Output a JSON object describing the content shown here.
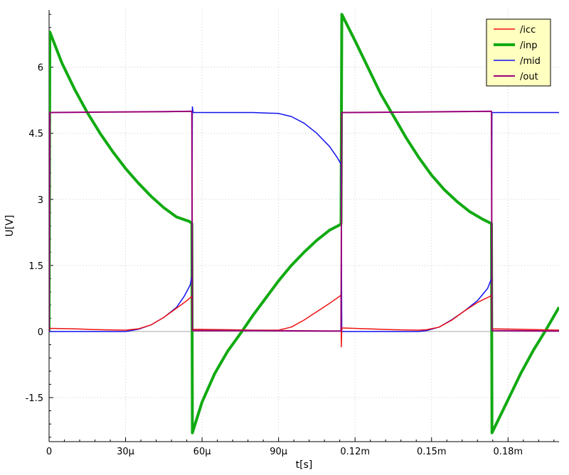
{
  "chart_data": {
    "type": "line",
    "xlabel": "t[s]",
    "ylabel": "U[V]",
    "xlim": [
      0,
      0.0002
    ],
    "ylim": [
      -2.5,
      7.3
    ],
    "grid": true,
    "legend_position": "top-right",
    "x_ticks": [
      {
        "value": 0,
        "label": "0"
      },
      {
        "value": 3e-05,
        "label": "30µ"
      },
      {
        "value": 6e-05,
        "label": "60µ"
      },
      {
        "value": 9e-05,
        "label": "90µ"
      },
      {
        "value": 0.00012,
        "label": "0.12m"
      },
      {
        "value": 0.00015,
        "label": "0.15m"
      },
      {
        "value": 0.00018,
        "label": "0.18m"
      }
    ],
    "y_ticks": [
      {
        "value": -1.5,
        "label": "-1.5"
      },
      {
        "value": 0,
        "label": "0"
      },
      {
        "value": 1.5,
        "label": "1.5"
      },
      {
        "value": 3,
        "label": "3"
      },
      {
        "value": 4.5,
        "label": "4.5"
      },
      {
        "value": 6,
        "label": "6"
      }
    ],
    "series": [
      {
        "name": "/icc",
        "color": "#ee1111",
        "width": 1.5,
        "points": [
          [
            0,
            0.05
          ],
          [
            5e-07,
            0.07
          ],
          [
            1e-05,
            0.06
          ],
          [
            2e-05,
            0.04
          ],
          [
            3e-05,
            0.03
          ],
          [
            3.5e-05,
            0.06
          ],
          [
            4e-05,
            0.15
          ],
          [
            4.5e-05,
            0.32
          ],
          [
            5e-05,
            0.53
          ],
          [
            5.4e-05,
            0.7
          ],
          [
            5.6e-05,
            0.8
          ],
          [
            5.62e-05,
            0.05
          ],
          [
            7e-05,
            0.04
          ],
          [
            8e-05,
            0.03
          ],
          [
            9e-05,
            0.03
          ],
          [
            9.5e-05,
            0.1
          ],
          [
            0.0001,
            0.26
          ],
          [
            0.000105,
            0.45
          ],
          [
            0.00011,
            0.64
          ],
          [
            0.000114,
            0.8
          ],
          [
            0.0001145,
            0.83
          ],
          [
            0.0001146,
            -0.35
          ],
          [
            0.0001148,
            0.08
          ],
          [
            0.000125,
            0.06
          ],
          [
            0.000135,
            0.04
          ],
          [
            0.000145,
            0.03
          ],
          [
            0.000148,
            0.04
          ],
          [
            0.000153,
            0.1
          ],
          [
            0.000158,
            0.26
          ],
          [
            0.000163,
            0.47
          ],
          [
            0.000168,
            0.66
          ],
          [
            0.000173,
            0.8
          ],
          [
            0.0001735,
            0.83
          ],
          [
            0.0001737,
            0.06
          ],
          [
            0.000185,
            0.05
          ],
          [
            0.0002,
            0.03
          ]
        ]
      },
      {
        "name": "/inp",
        "color": "#11aa11",
        "width": 4,
        "points": [
          [
            0,
            0.0
          ],
          [
            3e-07,
            6.8
          ],
          [
            5e-06,
            6.1
          ],
          [
            1e-05,
            5.5
          ],
          [
            1.5e-05,
            4.97
          ],
          [
            2e-05,
            4.5
          ],
          [
            2.5e-05,
            4.08
          ],
          [
            3e-05,
            3.7
          ],
          [
            3.5e-05,
            3.37
          ],
          [
            4e-05,
            3.07
          ],
          [
            4.5e-05,
            2.81
          ],
          [
            5e-05,
            2.6
          ],
          [
            5.5e-05,
            2.5
          ],
          [
            5.6e-05,
            2.45
          ],
          [
            5.62e-05,
            -2.3
          ],
          [
            6e-05,
            -1.6
          ],
          [
            6.5e-05,
            -0.95
          ],
          [
            7e-05,
            -0.45
          ],
          [
            7.5e-05,
            -0.05
          ],
          [
            8e-05,
            0.37
          ],
          [
            8.5e-05,
            0.76
          ],
          [
            9e-05,
            1.15
          ],
          [
            9.5e-05,
            1.5
          ],
          [
            0.0001,
            1.8
          ],
          [
            0.000105,
            2.07
          ],
          [
            0.00011,
            2.3
          ],
          [
            0.000114,
            2.42
          ],
          [
            0.0001145,
            2.45
          ],
          [
            0.0001148,
            7.2
          ],
          [
            0.00012,
            6.6
          ],
          [
            0.000125,
            6.0
          ],
          [
            0.00013,
            5.4
          ],
          [
            0.000135,
            4.9
          ],
          [
            0.00014,
            4.4
          ],
          [
            0.000145,
            3.95
          ],
          [
            0.00015,
            3.55
          ],
          [
            0.000155,
            3.22
          ],
          [
            0.00016,
            2.95
          ],
          [
            0.000165,
            2.72
          ],
          [
            0.00017,
            2.55
          ],
          [
            0.0001735,
            2.45
          ],
          [
            0.0001737,
            -2.3
          ],
          [
            0.00018,
            -1.55
          ],
          [
            0.000185,
            -0.95
          ],
          [
            0.00019,
            -0.42
          ],
          [
            0.000195,
            0.05
          ],
          [
            0.0002,
            0.55
          ]
        ]
      },
      {
        "name": "/mid",
        "color": "#1111ee",
        "width": 1.5,
        "points": [
          [
            0,
            0.0
          ],
          [
            3e-05,
            0.0
          ],
          [
            3.5e-05,
            0.05
          ],
          [
            4e-05,
            0.15
          ],
          [
            4.5e-05,
            0.32
          ],
          [
            5e-05,
            0.55
          ],
          [
            5.3e-05,
            0.8
          ],
          [
            5.53e-05,
            1.05
          ],
          [
            5.6e-05,
            1.25
          ],
          [
            5.62e-05,
            5.1
          ],
          [
            5.65e-05,
            4.97
          ],
          [
            6e-05,
            4.97
          ],
          [
            8e-05,
            4.97
          ],
          [
            9e-05,
            4.95
          ],
          [
            9.5e-05,
            4.88
          ],
          [
            0.0001,
            4.73
          ],
          [
            0.000105,
            4.5
          ],
          [
            0.00011,
            4.2
          ],
          [
            0.000113,
            3.95
          ],
          [
            0.0001145,
            3.8
          ],
          [
            0.0001148,
            0.0
          ],
          [
            0.00013,
            0.0
          ],
          [
            0.000145,
            0.0
          ],
          [
            0.000148,
            0.02
          ],
          [
            0.000153,
            0.1
          ],
          [
            0.000158,
            0.27
          ],
          [
            0.000163,
            0.47
          ],
          [
            0.000168,
            0.7
          ],
          [
            0.000172,
            0.98
          ],
          [
            0.0001735,
            1.2
          ],
          [
            0.0001737,
            4.97
          ],
          [
            0.0002,
            4.97
          ]
        ]
      },
      {
        "name": "/out",
        "color": "#990077",
        "width": 2,
        "points": [
          [
            0,
            0.0
          ],
          [
            3e-07,
            4.97
          ],
          [
            2e-05,
            4.98
          ],
          [
            4.5e-05,
            4.99
          ],
          [
            5.6e-05,
            5.0
          ],
          [
            5.62e-05,
            0.02
          ],
          [
            8e-05,
            0.02
          ],
          [
            0.00011,
            0.01
          ],
          [
            0.0001145,
            0.01
          ],
          [
            0.0001148,
            4.97
          ],
          [
            0.00014,
            4.98
          ],
          [
            0.0001735,
            5.0
          ],
          [
            0.0001737,
            0.02
          ],
          [
            0.0002,
            0.01
          ]
        ]
      }
    ]
  }
}
